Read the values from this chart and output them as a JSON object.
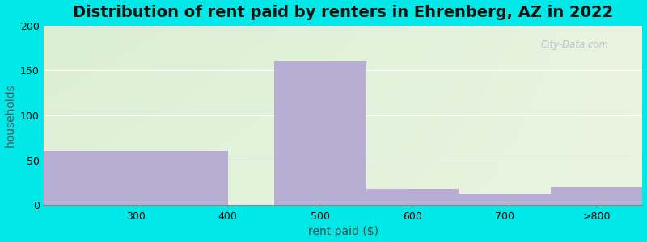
{
  "title": "Distribution of rent paid by renters in Ehrenberg, AZ in 2022",
  "xlabel": "rent paid ($)",
  "ylabel": "households",
  "bar_edges": [
    200,
    400,
    450,
    550,
    650,
    750,
    850
  ],
  "bar_heights": [
    60,
    0,
    160,
    18,
    13,
    20
  ],
  "bar_color": "#b8aed4",
  "bar_edgecolor": "none",
  "ylim": [
    0,
    200
  ],
  "xlim": [
    200,
    850
  ],
  "yticks": [
    0,
    50,
    100,
    150,
    200
  ],
  "xtick_positions": [
    300,
    400,
    500,
    600,
    700,
    800
  ],
  "xtick_labels": [
    "300",
    "400",
    "500",
    "600",
    "700",
    ">800"
  ],
  "bg_outer": "#00e8e8",
  "bg_inner": "#e8f4e0",
  "grid_color": "#ffffff",
  "title_fontsize": 14,
  "label_fontsize": 10,
  "tick_fontsize": 9,
  "watermark": "City-Data.com"
}
